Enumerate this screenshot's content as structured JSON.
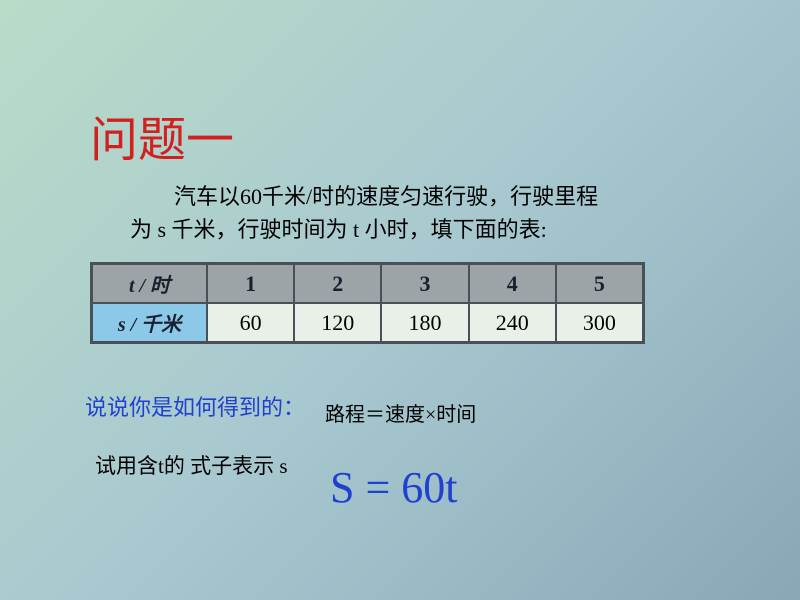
{
  "title": "问题一",
  "problem": {
    "line1_prefix": "汽车以60千米/时的速度匀速行驶，行驶里程",
    "line2": "为 s 千米，行驶时间为 t 小时，填下面的表:"
  },
  "table": {
    "header_row": {
      "label": "t / 时",
      "values": [
        "1",
        "2",
        "3",
        "4",
        "5"
      ],
      "bg_color": "#9ca4a8",
      "text_color": "#1a2030"
    },
    "data_row": {
      "label": "s / 千米",
      "values": [
        "60",
        "120",
        "180",
        "240",
        "300"
      ],
      "bg_color": "#8cc8e8",
      "value_bg_color": "#e8f0e8"
    },
    "border_color": "#4a5058"
  },
  "how_text": "说说你是如何得到的：",
  "formula_text": "路程＝速度×时间",
  "try_text": "试用含t的 式子表示 s",
  "equation": "S = 60t",
  "colors": {
    "title": "#d02020",
    "blue_text": "#2040d0",
    "body_text": "#000000",
    "bg_gradient_start": "#b8dcc8",
    "bg_gradient_mid": "#a8c8d0",
    "bg_gradient_end": "#88a8b8"
  },
  "typography": {
    "title_fontsize": 48,
    "body_fontsize": 22,
    "equation_fontsize": 44,
    "font_family": "SimSun"
  }
}
